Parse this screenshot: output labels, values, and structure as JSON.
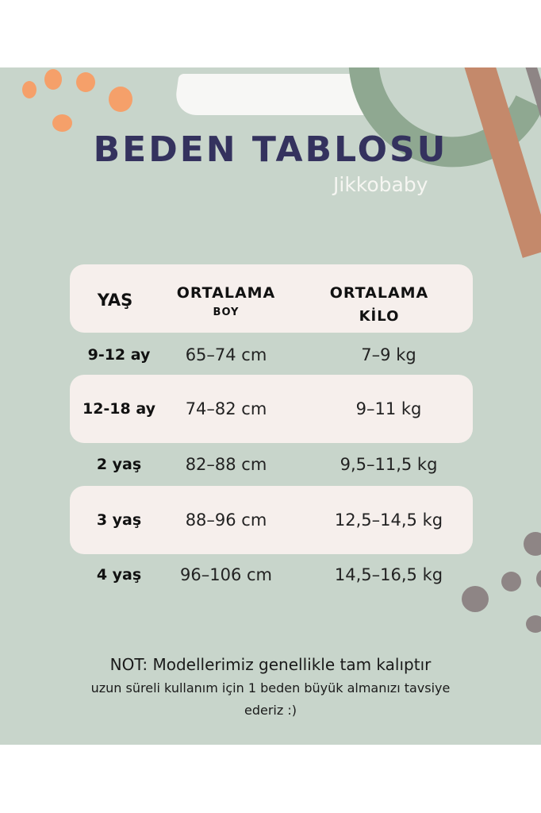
{
  "title": "BEDEN TABLOSU",
  "brand": "Jikkobaby",
  "table": {
    "headers": {
      "age": "YAŞ",
      "height_line1": "ORTALAMA",
      "height_line2": "BOY",
      "weight_line1": "ORTALAMA",
      "weight_line2": "KİLO"
    },
    "rows": [
      {
        "age": "9-12 ay",
        "height": "65–74 cm",
        "weight": "7–9 kg"
      },
      {
        "age": "12-18 ay",
        "height": "74–82 cm",
        "weight": "9–11 kg"
      },
      {
        "age": "2 yaş",
        "height": "82–88 cm",
        "weight": "9,5–11,5 kg"
      },
      {
        "age": "3 yaş",
        "height": "88–96 cm",
        "weight": "12,5–14,5 kg"
      },
      {
        "age": "4 yaş",
        "height": "96–106 cm",
        "weight": "14,5–16,5 kg"
      }
    ]
  },
  "note": {
    "line1": "NOT: Modellerimiz genellikle tam kalıptır",
    "line2": "uzun süreli kullanım için 1 beden büyük almanızı tavsiye",
    "line3": "ederiz :)"
  },
  "colors": {
    "background": "#c8d5cb",
    "title": "#34325e",
    "band": "#f6efec",
    "orange": "#f5a06a",
    "green": "#8fa891",
    "terracotta": "#c4896b",
    "grey": "#8e8585"
  }
}
